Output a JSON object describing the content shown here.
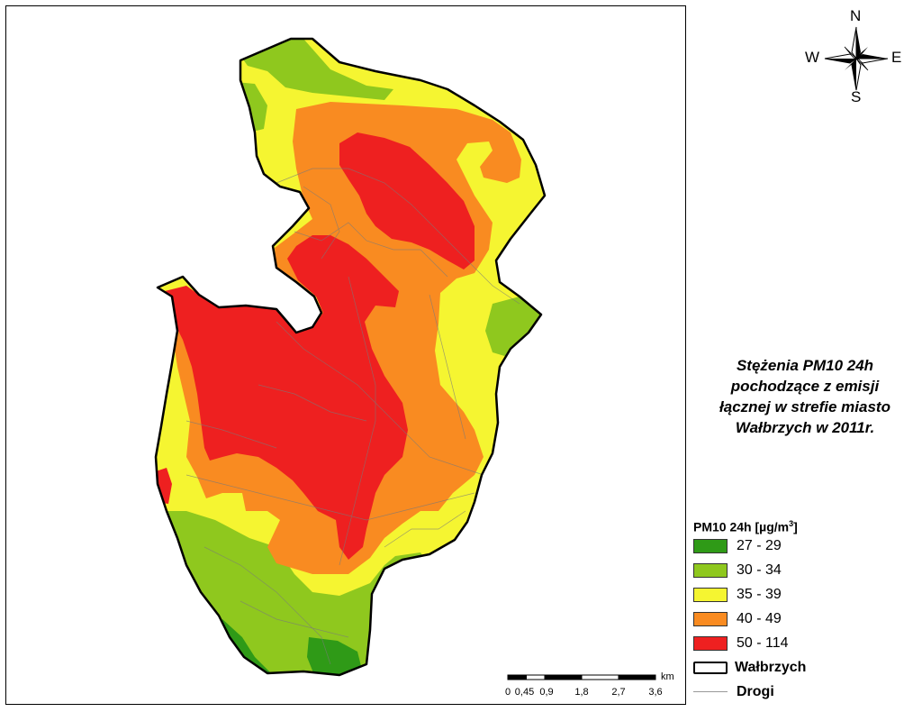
{
  "title": "Stężenia PM10 24h\npochodzące z emisji\nłącznej w strefie miasto\nWałbrzych w 2011r.",
  "compass": {
    "n": "N",
    "s": "S",
    "e": "E",
    "w": "W"
  },
  "legend": {
    "header_prefix": "PM10 24h [µg/m",
    "header_sup": "3",
    "header_suffix": "]",
    "classes": [
      {
        "label": "27 - 29",
        "color": "#2f9a17"
      },
      {
        "label": "30 - 34",
        "color": "#8fc81e"
      },
      {
        "label": "35 - 39",
        "color": "#f5f531"
      },
      {
        "label": "40 - 49",
        "color": "#f98b21"
      },
      {
        "label": "50 - 114",
        "color": "#ee2020"
      }
    ],
    "boundary_label": "Wałbrzych",
    "roads_label": "Drogi"
  },
  "scale": {
    "unit": "km",
    "ticks": [
      "0",
      "0,45",
      "0,9",
      "1,8",
      "2,7",
      "3,6"
    ]
  }
}
